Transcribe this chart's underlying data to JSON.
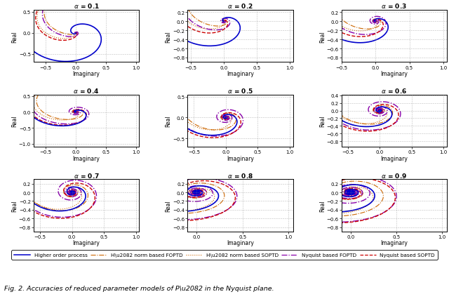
{
  "alphas": [
    0.1,
    0.2,
    0.3,
    0.4,
    0.5,
    0.6,
    0.7,
    0.8,
    0.9
  ],
  "line_styles": {
    "higher_order": {
      "color": "#0000CC",
      "ls": "-",
      "lw": 1.2,
      "label": "Higher order process"
    },
    "h2_foptd": {
      "color": "#CC6600",
      "ls": "-.",
      "lw": 0.8,
      "label": "H\\u2082 norm based FOPTD"
    },
    "h2_soptd": {
      "color": "#CC6600",
      "ls": ":",
      "lw": 0.8,
      "label": "H\\u2082 norm based SOPTD"
    },
    "nyq_foptd": {
      "color": "#8800AA",
      "ls": "-.",
      "lw": 1.0,
      "label": "Nyquist based FOPTD"
    },
    "nyq_soptd": {
      "color": "#CC0000",
      "ls": "--",
      "lw": 1.0,
      "label": "Nyquist based SOPTD"
    }
  },
  "subplot_settings": {
    "0.1": {
      "xlim": [
        -0.7,
        1.05
      ],
      "ylim": [
        -0.7,
        0.55
      ],
      "xticks": [
        -0.5,
        0,
        0.5,
        1
      ],
      "yticks": [
        -0.5,
        0,
        0.5
      ]
    },
    "0.2": {
      "xlim": [
        -0.55,
        1.05
      ],
      "ylim": [
        -0.9,
        0.25
      ],
      "xticks": [
        -0.5,
        0,
        0.5,
        1
      ],
      "yticks": [
        -0.8,
        -0.6,
        -0.4,
        -0.2,
        0,
        0.2
      ]
    },
    "0.3": {
      "xlim": [
        -0.5,
        1.05
      ],
      "ylim": [
        -0.9,
        0.25
      ],
      "xticks": [
        -0.5,
        0,
        0.5,
        1
      ],
      "yticks": [
        -0.8,
        -0.6,
        -0.4,
        -0.2,
        0,
        0.2
      ]
    },
    "0.4": {
      "xlim": [
        -0.7,
        1.05
      ],
      "ylim": [
        -1.1,
        0.55
      ],
      "xticks": [
        -0.5,
        0,
        0.5,
        1
      ],
      "yticks": [
        -1,
        -0.5,
        0,
        0.5
      ]
    },
    "0.5": {
      "xlim": [
        -0.6,
        1.05
      ],
      "ylim": [
        -0.7,
        0.55
      ],
      "xticks": [
        -0.5,
        0,
        0.5,
        1
      ],
      "yticks": [
        -0.5,
        0,
        0.5
      ]
    },
    "0.6": {
      "xlim": [
        -0.6,
        1.05
      ],
      "ylim": [
        -0.95,
        0.42
      ],
      "xticks": [
        -0.5,
        0,
        0.5,
        1
      ],
      "yticks": [
        -0.8,
        -0.6,
        -0.4,
        -0.2,
        0,
        0.2,
        0.4
      ]
    },
    "0.7": {
      "xlim": [
        -0.6,
        1.05
      ],
      "ylim": [
        -0.9,
        0.3
      ],
      "xticks": [
        -0.5,
        0,
        0.5,
        1
      ],
      "yticks": [
        -0.8,
        -0.6,
        -0.4,
        -0.2,
        0,
        0.2
      ]
    },
    "0.8": {
      "xlim": [
        -0.1,
        1.05
      ],
      "ylim": [
        -0.9,
        0.3
      ],
      "xticks": [
        0,
        0.5,
        1
      ],
      "yticks": [
        -0.8,
        -0.6,
        -0.4,
        -0.2,
        0,
        0.2
      ]
    },
    "0.9": {
      "xlim": [
        -0.1,
        1.05
      ],
      "ylim": [
        -0.9,
        0.3
      ],
      "xticks": [
        0,
        0.5,
        1
      ],
      "yticks": [
        -0.8,
        -0.6,
        -0.4,
        -0.2,
        0,
        0.2
      ]
    }
  },
  "fig_caption": "Fig. 2. Accuracies of reduced parameter models of P\\u2082 in the Nyquist plane.",
  "background_color": "#ffffff"
}
